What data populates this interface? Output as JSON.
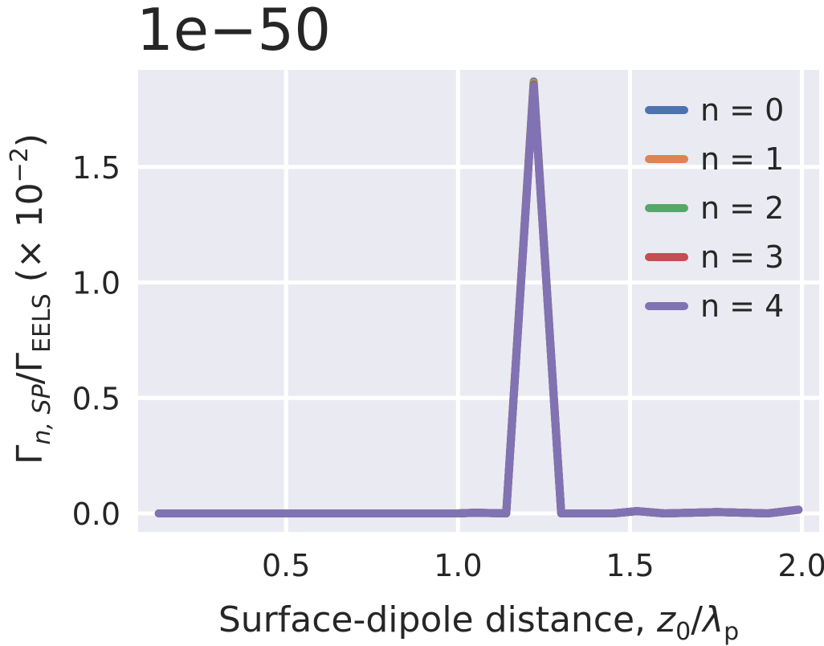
{
  "chart_data": {
    "type": "line",
    "title": "",
    "offset_text": "1e−50",
    "xlabel_prefix": "Surface-dipole distance, ",
    "xlabel_var": "z",
    "xlabel_var_sub": "0",
    "xlabel_sep": "/",
    "xlabel_var2": "λ",
    "xlabel_var2_sub": "p",
    "ylabel_gamma": "Γ",
    "ylabel_sub1": "n, SP",
    "ylabel_mid": "/Γ",
    "ylabel_sub2": "EELS",
    "ylabel_suffix": " (× 10",
    "ylabel_sup": "−2",
    "ylabel_close": ")",
    "xlim": [
      0.07,
      2.05
    ],
    "ylim": [
      -0.08,
      1.92
    ],
    "xticks": [
      0.5,
      1.0,
      1.5,
      2.0
    ],
    "xtick_labels": [
      "0.5",
      "1.0",
      "1.5",
      "2.0"
    ],
    "yticks": [
      0.0,
      0.5,
      1.0,
      1.5
    ],
    "ytick_labels": [
      "0.0",
      "0.5",
      "1.0",
      "1.5"
    ],
    "grid": true,
    "legend_position": "top-right",
    "background_color": "#eaeaf2",
    "grid_color": "#ffffff",
    "x": [
      0.13,
      0.5,
      1.0,
      1.05,
      1.14,
      1.22,
      1.3,
      1.45,
      1.52,
      1.6,
      1.75,
      1.9,
      1.99
    ],
    "series": [
      {
        "name": "n = 0",
        "color": "#4c72b0",
        "values": [
          0.0,
          0.0,
          0.0,
          0.003,
          0.0,
          1.87,
          0.0,
          0.0,
          0.01,
          0.0,
          0.006,
          0.0,
          0.016
        ]
      },
      {
        "name": "n = 1",
        "color": "#dd8452",
        "values": [
          0.0,
          0.0,
          0.0,
          0.003,
          0.0,
          1.865,
          0.0,
          0.0,
          0.01,
          0.0,
          0.006,
          0.0,
          0.016
        ]
      },
      {
        "name": "n = 2",
        "color": "#55a868",
        "values": [
          0.0,
          0.0,
          0.0,
          0.003,
          0.0,
          1.86,
          0.0,
          0.0,
          0.01,
          0.0,
          0.006,
          0.0,
          0.016
        ]
      },
      {
        "name": "n = 3",
        "color": "#c44e52",
        "values": [
          0.0,
          0.0,
          0.0,
          0.003,
          0.0,
          1.855,
          0.0,
          0.0,
          0.01,
          0.0,
          0.006,
          0.0,
          0.016
        ]
      },
      {
        "name": "n = 4",
        "color": "#8172b3",
        "values": [
          0.0,
          0.0,
          0.0,
          0.003,
          0.0,
          1.85,
          0.0,
          0.0,
          0.01,
          0.0,
          0.006,
          0.0,
          0.016
        ]
      }
    ]
  }
}
